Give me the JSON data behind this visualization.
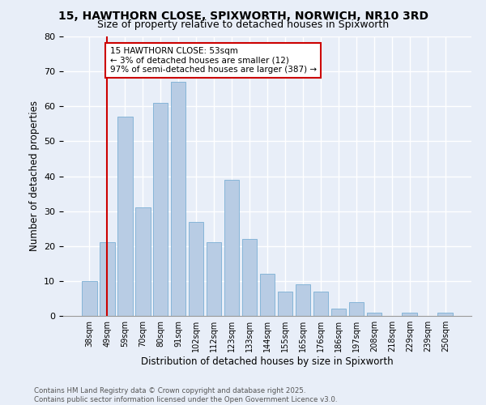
{
  "title_line1": "15, HAWTHORN CLOSE, SPIXWORTH, NORWICH, NR10 3RD",
  "title_line2": "Size of property relative to detached houses in Spixworth",
  "xlabel": "Distribution of detached houses by size in Spixworth",
  "ylabel": "Number of detached properties",
  "categories": [
    "38sqm",
    "49sqm",
    "59sqm",
    "70sqm",
    "80sqm",
    "91sqm",
    "102sqm",
    "112sqm",
    "123sqm",
    "133sqm",
    "144sqm",
    "155sqm",
    "165sqm",
    "176sqm",
    "186sqm",
    "197sqm",
    "208sqm",
    "218sqm",
    "229sqm",
    "239sqm",
    "250sqm"
  ],
  "values": [
    10,
    21,
    57,
    31,
    61,
    67,
    27,
    21,
    39,
    22,
    12,
    7,
    9,
    7,
    2,
    4,
    1,
    0,
    1,
    0,
    1
  ],
  "bar_color": "#b8cce4",
  "bar_edge_color": "#7bafd4",
  "vline_x": 1,
  "vline_color": "#cc0000",
  "annotation_text": "15 HAWTHORN CLOSE: 53sqm\n← 3% of detached houses are smaller (12)\n97% of semi-detached houses are larger (387) →",
  "annotation_box_color": "#ffffff",
  "annotation_box_edge": "#cc0000",
  "ylim": [
    0,
    80
  ],
  "yticks": [
    0,
    10,
    20,
    30,
    40,
    50,
    60,
    70,
    80
  ],
  "footer_line1": "Contains HM Land Registry data © Crown copyright and database right 2025.",
  "footer_line2": "Contains public sector information licensed under the Open Government Licence v3.0.",
  "bg_color": "#e8eef8",
  "plot_bg_color": "#e8eef8",
  "grid_color": "#ffffff",
  "title_fontsize": 10,
  "subtitle_fontsize": 9
}
